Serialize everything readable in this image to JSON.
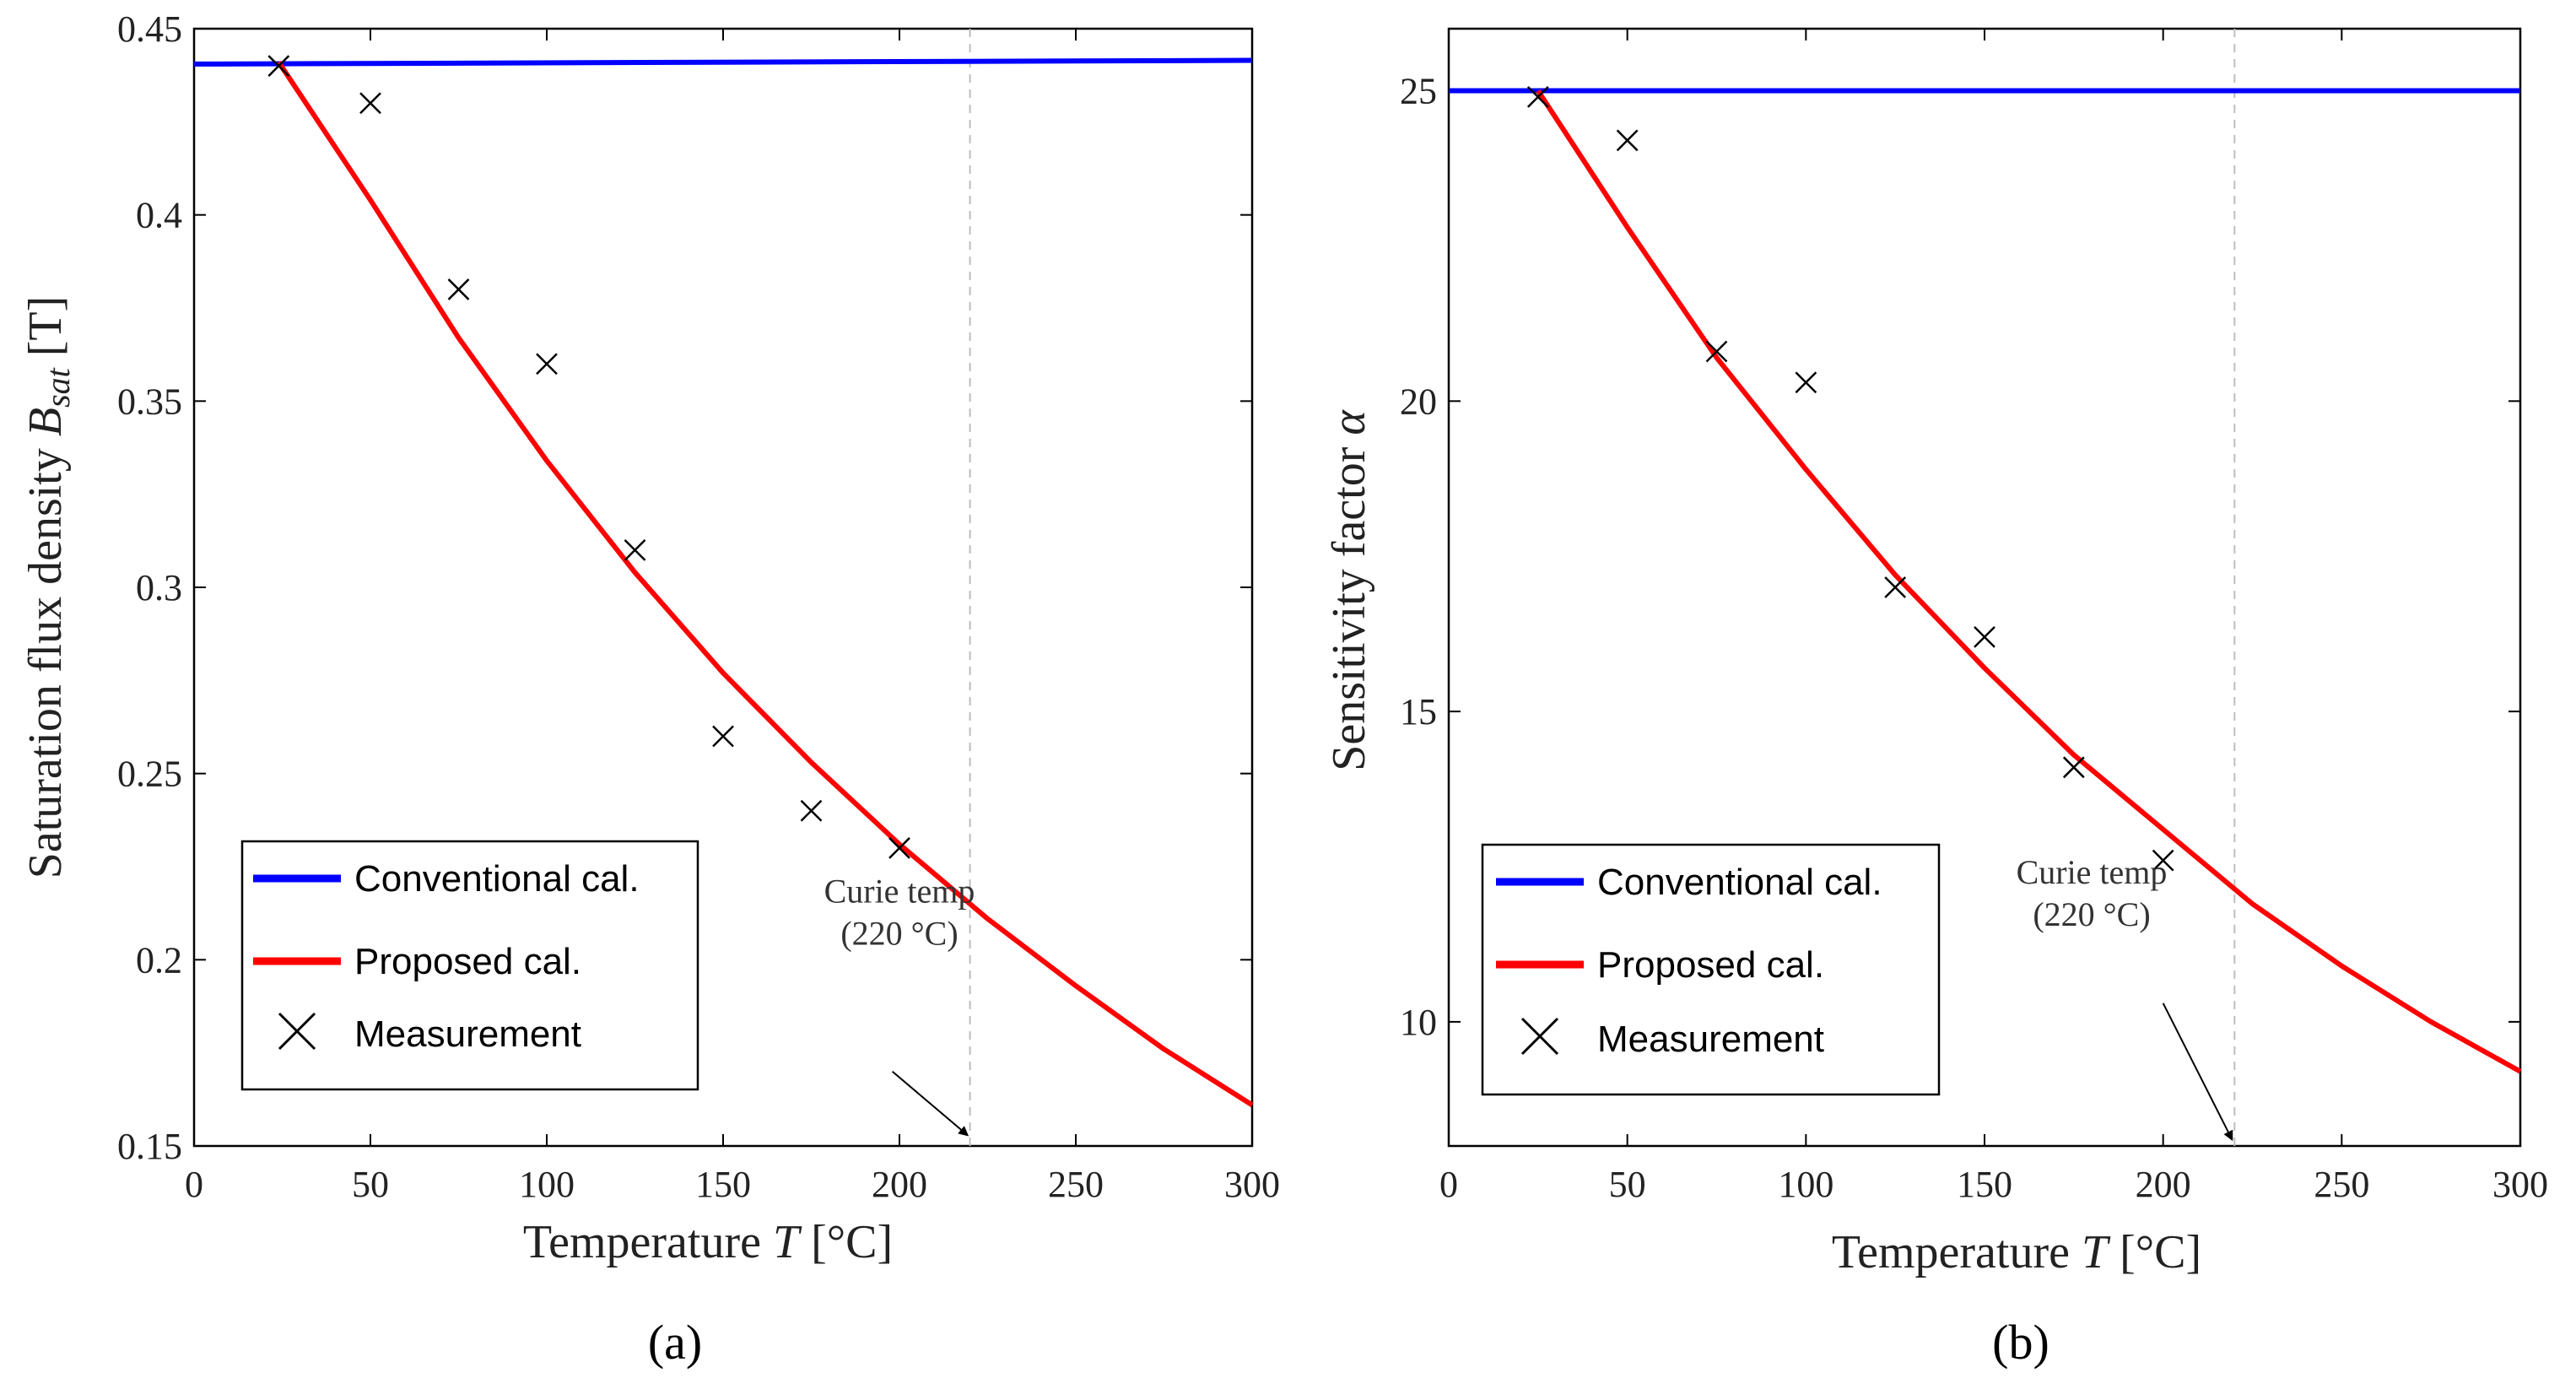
{
  "chart_data": [
    {
      "type": "line",
      "panel_label": "(a)",
      "xlabel": "Temperature",
      "xlabel_var": "T",
      "xlabel_unit": "[°C]",
      "ylabel": "Saturation flux density",
      "ylabel_var": "B",
      "ylabel_sub": "sat",
      "ylabel_unit": "[T]",
      "xlim": [
        0,
        300
      ],
      "ylim": [
        0.15,
        0.45
      ],
      "xticks": [
        0,
        50,
        100,
        150,
        200,
        250,
        300
      ],
      "xtick_labels": [
        "0",
        "50",
        "100",
        "150",
        "200",
        "250",
        "300"
      ],
      "yticks": [
        0.15,
        0.2,
        0.25,
        0.3,
        0.35,
        0.4,
        0.45
      ],
      "ytick_labels": [
        "0.15",
        "0.2",
        "0.25",
        "0.3",
        "0.35",
        "0.4",
        "0.45"
      ],
      "series": [
        {
          "name": "Conventional cal.",
          "kind": "line",
          "color": "#0000ff",
          "x": [
            0,
            300
          ],
          "y": [
            0.4405,
            0.4415
          ]
        },
        {
          "name": "Proposed cal.",
          "kind": "line",
          "color": "#ff0000",
          "x": [
            24,
            50,
            75,
            100,
            125,
            150,
            175,
            200,
            225,
            250,
            275,
            300
          ],
          "y": [
            0.441,
            0.404,
            0.367,
            0.334,
            0.304,
            0.277,
            0.253,
            0.231,
            0.211,
            0.193,
            0.176,
            0.161
          ]
        },
        {
          "name": "Measurement",
          "kind": "marker",
          "color": "#000000",
          "x": [
            24,
            50,
            75,
            100,
            125,
            150,
            175,
            200
          ],
          "y": [
            0.44,
            0.43,
            0.38,
            0.36,
            0.31,
            0.26,
            0.24,
            0.23
          ]
        }
      ],
      "legend_position": "lower-left",
      "vline": {
        "x": 220
      },
      "annotation": {
        "line1": "Curie temp",
        "line2": "(220 °C)",
        "text_x": 200,
        "text_y": 0.205,
        "arrow_from": [
          198,
          0.17
        ],
        "arrow_to": [
          220,
          0.152
        ]
      }
    },
    {
      "type": "line",
      "panel_label": "(b)",
      "xlabel": "Temperature",
      "xlabel_var": "T",
      "xlabel_unit": "[°C]",
      "ylabel": "Sensitivity factor",
      "ylabel_var": "α",
      "ylabel_sub": "",
      "ylabel_unit": "",
      "xlim": [
        0,
        300
      ],
      "ylim": [
        8,
        26
      ],
      "xticks": [
        0,
        50,
        100,
        150,
        200,
        250,
        300
      ],
      "xtick_labels": [
        "0",
        "50",
        "100",
        "150",
        "200",
        "250",
        "300"
      ],
      "yticks": [
        10,
        15,
        20,
        25
      ],
      "ytick_labels": [
        "10",
        "15",
        "20",
        "25"
      ],
      "series": [
        {
          "name": "Conventional cal.",
          "kind": "line",
          "color": "#0000ff",
          "x": [
            0,
            300
          ],
          "y": [
            25.0,
            25.0
          ]
        },
        {
          "name": "Proposed cal.",
          "kind": "line",
          "color": "#ff0000",
          "x": [
            25,
            50,
            75,
            100,
            125,
            150,
            175,
            200,
            225,
            250,
            275,
            300
          ],
          "y": [
            25.0,
            22.8,
            20.7,
            18.9,
            17.2,
            15.7,
            14.3,
            13.1,
            11.9,
            10.9,
            10.0,
            9.2
          ]
        },
        {
          "name": "Measurement",
          "kind": "marker",
          "color": "#000000",
          "x": [
            25,
            50,
            75,
            100,
            125,
            150,
            175,
            200
          ],
          "y": [
            24.9,
            24.2,
            20.8,
            20.3,
            17.0,
            16.2,
            14.1,
            12.6
          ]
        }
      ],
      "legend_position": "lower-left",
      "vline": {
        "x": 220
      },
      "annotation": {
        "line1": "Curie temp",
        "line2": "(220 °C)",
        "text_x": 180,
        "text_y": 11.6,
        "arrow_from": [
          200,
          10.3
        ],
        "arrow_to": [
          220,
          8.05
        ]
      }
    }
  ]
}
